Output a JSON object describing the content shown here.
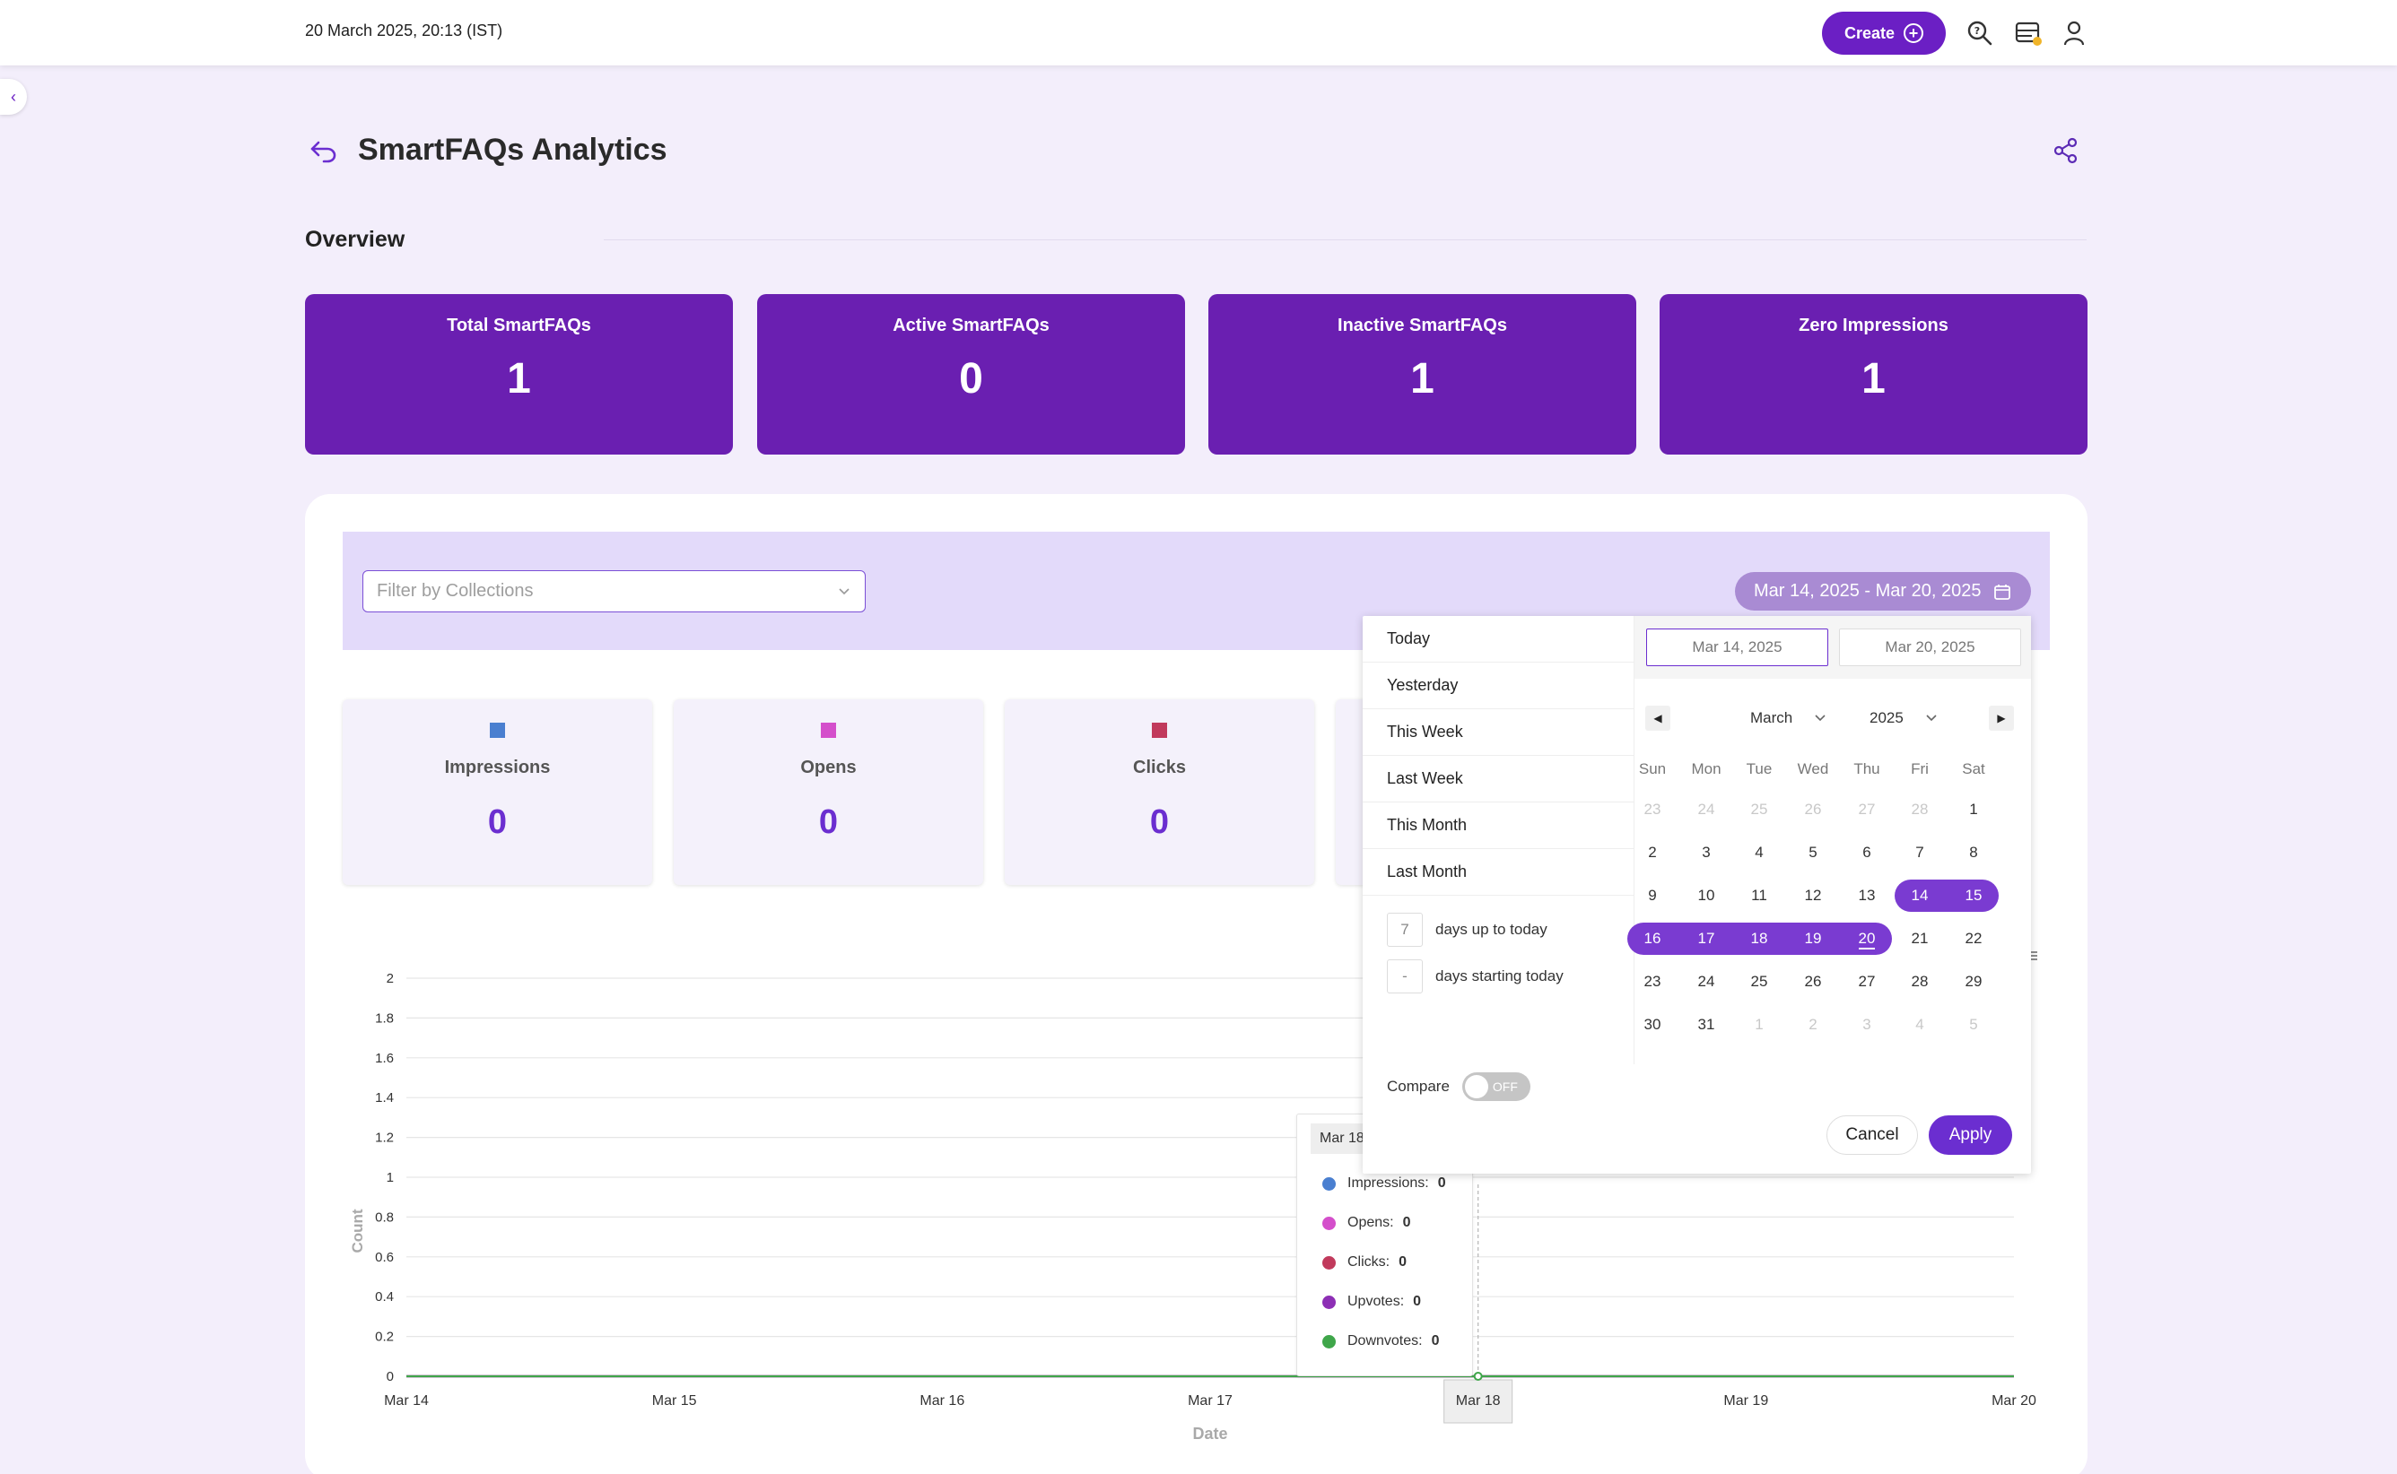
{
  "topbar": {
    "datetime": "20 March 2025, 20:13 (IST)",
    "create_label": "Create",
    "icons": [
      "search-icon",
      "storage-icon",
      "user-icon"
    ]
  },
  "header": {
    "title": "SmartFAQs Analytics",
    "overview_label": "Overview"
  },
  "stats": [
    {
      "label": "Total SmartFAQs",
      "value": "1"
    },
    {
      "label": "Active SmartFAQs",
      "value": "0"
    },
    {
      "label": "Inactive SmartFAQs",
      "value": "1"
    },
    {
      "label": "Zero Impressions",
      "value": "1"
    }
  ],
  "filter": {
    "placeholder": "Filter by Collections",
    "date_range": "Mar 14, 2025 - Mar 20, 2025"
  },
  "metrics": [
    {
      "label": "Impressions",
      "value": "0",
      "color": "#4a7fd0"
    },
    {
      "label": "Opens",
      "value": "0",
      "color": "#d44fcb"
    },
    {
      "label": "Clicks",
      "value": "0",
      "color": "#c13a5c"
    }
  ],
  "picker": {
    "presets": [
      "Today",
      "Yesterday",
      "This Week",
      "Last Week",
      "This Month",
      "Last Month"
    ],
    "days_up_value": "7",
    "days_up_label": "days up to today",
    "days_starting_value": "-",
    "days_starting_label": "days starting today",
    "start_date": "Mar 14, 2025",
    "end_date": "Mar 20, 2025",
    "month": "March",
    "year": "2025",
    "weekdays": [
      "Sun",
      "Mon",
      "Tue",
      "Wed",
      "Thu",
      "Fri",
      "Sat"
    ],
    "weeks": [
      [
        "23",
        "24",
        "25",
        "26",
        "27",
        "28",
        "1"
      ],
      [
        "2",
        "3",
        "4",
        "5",
        "6",
        "7",
        "8"
      ],
      [
        "9",
        "10",
        "11",
        "12",
        "13",
        "14",
        "15"
      ],
      [
        "16",
        "17",
        "18",
        "19",
        "20",
        "21",
        "22"
      ],
      [
        "23",
        "24",
        "25",
        "26",
        "27",
        "28",
        "29"
      ],
      [
        "30",
        "31",
        "1",
        "2",
        "3",
        "4",
        "5"
      ]
    ],
    "compare_label": "Compare",
    "compare_state": "OFF",
    "cancel_label": "Cancel",
    "apply_label": "Apply",
    "accent": "#7a3bd1"
  },
  "tooltip": {
    "date": "Mar 18",
    "rows": [
      {
        "label": "Impressions:",
        "value": "0",
        "color": "#4a7fd0"
      },
      {
        "label": "Opens:",
        "value": "0",
        "color": "#d44fcb"
      },
      {
        "label": "Clicks:",
        "value": "0",
        "color": "#c13a5c"
      },
      {
        "label": "Upvotes:",
        "value": "0",
        "color": "#8d2fb5"
      },
      {
        "label": "Downvotes:",
        "value": "0",
        "color": "#3fa64a"
      }
    ]
  },
  "chart_data": {
    "type": "line",
    "x": [
      "Mar 14",
      "Mar 15",
      "Mar 16",
      "Mar 17",
      "Mar 18",
      "Mar 19",
      "Mar 20"
    ],
    "yticks": [
      "0",
      "0.2",
      "0.4",
      "0.6",
      "0.8",
      "1",
      "1.2",
      "1.4",
      "1.6",
      "1.8",
      "2"
    ],
    "ylim": [
      0,
      2
    ],
    "xlabel": "Date",
    "ylabel": "Count",
    "grid": true,
    "series": [
      {
        "name": "Impressions",
        "values": [
          0,
          0,
          0,
          0,
          0,
          0,
          0
        ],
        "color": "#4a7fd0"
      },
      {
        "name": "Opens",
        "values": [
          0,
          0,
          0,
          0,
          0,
          0,
          0
        ],
        "color": "#d44fcb"
      },
      {
        "name": "Clicks",
        "values": [
          0,
          0,
          0,
          0,
          0,
          0,
          0
        ],
        "color": "#c13a5c"
      },
      {
        "name": "Upvotes",
        "values": [
          0,
          0,
          0,
          0,
          0,
          0,
          0
        ],
        "color": "#8d2fb5"
      },
      {
        "name": "Downvotes",
        "values": [
          0,
          0,
          0,
          0,
          0,
          0,
          0
        ],
        "color": "#3fa64a"
      }
    ],
    "highlight_x": "Mar 18"
  }
}
